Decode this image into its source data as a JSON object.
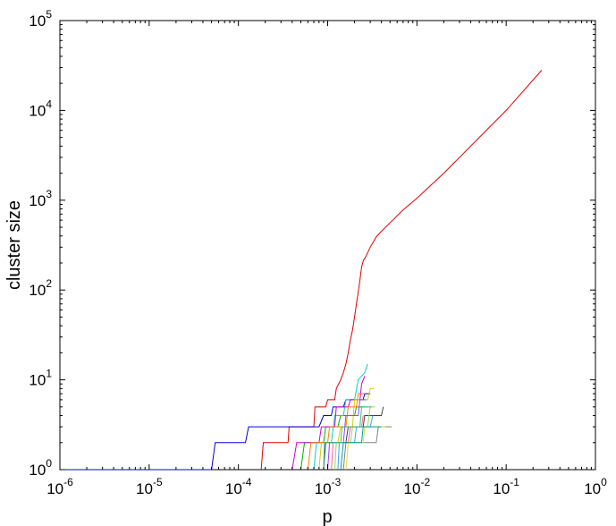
{
  "chart_data": {
    "type": "line",
    "title": "",
    "xlabel": "p",
    "ylabel": "cluster size",
    "xscale": "log",
    "yscale": "log",
    "xlim": [
      1e-06,
      1
    ],
    "ylim": [
      1,
      100000
    ],
    "grid": false,
    "legend": "none",
    "x_ticks": [
      {
        "base": "10",
        "exp": "-6",
        "value": 1e-06
      },
      {
        "base": "10",
        "exp": "-5",
        "value": 1e-05
      },
      {
        "base": "10",
        "exp": "-4",
        "value": 0.0001
      },
      {
        "base": "10",
        "exp": "-3",
        "value": 0.001
      },
      {
        "base": "10",
        "exp": "-2",
        "value": 0.01
      },
      {
        "base": "10",
        "exp": "-1",
        "value": 0.1
      },
      {
        "base": "10",
        "exp": "0",
        "value": 1
      }
    ],
    "y_ticks": [
      {
        "base": "10",
        "exp": "0",
        "value": 1
      },
      {
        "base": "10",
        "exp": "1",
        "value": 10
      },
      {
        "base": "10",
        "exp": "2",
        "value": 100
      },
      {
        "base": "10",
        "exp": "3",
        "value": 1000
      },
      {
        "base": "10",
        "exp": "4",
        "value": 10000
      },
      {
        "base": "10",
        "exp": "5",
        "value": 100000
      }
    ],
    "series": [
      {
        "color": "#e00000",
        "points": [
          [
            0.00018,
            1
          ],
          [
            0.00019,
            2
          ],
          [
            0.00036,
            2
          ],
          [
            0.00037,
            3
          ],
          [
            0.0007,
            3
          ],
          [
            0.00072,
            5
          ],
          [
            0.00095,
            5
          ],
          [
            0.001,
            6
          ],
          [
            0.0012,
            6
          ],
          [
            0.00125,
            8
          ],
          [
            0.0014,
            10
          ],
          [
            0.0015,
            12
          ],
          [
            0.0016,
            15
          ],
          [
            0.0017,
            20
          ],
          [
            0.0018,
            28
          ],
          [
            0.0019,
            36
          ],
          [
            0.002,
            50
          ],
          [
            0.0021,
            70
          ],
          [
            0.0022,
            95
          ],
          [
            0.0023,
            130
          ],
          [
            0.0024,
            180
          ],
          [
            0.0025,
            210
          ],
          [
            0.0027,
            240
          ],
          [
            0.003,
            300
          ],
          [
            0.0035,
            390
          ],
          [
            0.004,
            450
          ],
          [
            0.005,
            560
          ],
          [
            0.007,
            780
          ],
          [
            0.01,
            1050
          ],
          [
            0.02,
            2000
          ],
          [
            0.05,
            5000
          ],
          [
            0.1,
            10000
          ],
          [
            0.25,
            28000
          ]
        ]
      },
      {
        "color": "#0000e0",
        "points": [
          [
            1e-07,
            1
          ],
          [
            5e-05,
            1
          ],
          [
            5.5e-05,
            2
          ],
          [
            0.00012,
            2
          ],
          [
            0.00013,
            3
          ],
          [
            0.0005,
            3
          ],
          [
            0.0008,
            3
          ],
          [
            0.0009,
            4
          ],
          [
            0.0011,
            4
          ],
          [
            0.00115,
            5
          ],
          [
            0.0015,
            5
          ],
          [
            0.0016,
            6
          ],
          [
            0.0025,
            6
          ],
          [
            0.0026,
            7
          ],
          [
            0.003,
            7
          ]
        ]
      },
      {
        "color": "#00b000",
        "points": [
          [
            0.0005,
            1
          ],
          [
            0.00055,
            2
          ],
          [
            0.0009,
            2
          ],
          [
            0.00095,
            3
          ],
          [
            0.0013,
            3
          ],
          [
            0.0014,
            4
          ],
          [
            0.002,
            4
          ],
          [
            0.0021,
            5
          ],
          [
            0.0028,
            5
          ]
        ]
      },
      {
        "color": "#00d0d0",
        "points": [
          [
            0.0007,
            1
          ],
          [
            0.00075,
            2
          ],
          [
            0.0011,
            2
          ],
          [
            0.0012,
            4
          ],
          [
            0.0015,
            4
          ],
          [
            0.0016,
            6
          ],
          [
            0.002,
            6
          ],
          [
            0.0022,
            10
          ],
          [
            0.0026,
            12
          ],
          [
            0.0028,
            15
          ]
        ]
      },
      {
        "color": "#d000d0",
        "points": [
          [
            0.0004,
            1
          ],
          [
            0.00045,
            2
          ],
          [
            0.0008,
            2
          ],
          [
            0.00085,
            3
          ],
          [
            0.0012,
            3
          ],
          [
            0.00125,
            5
          ],
          [
            0.0017,
            5
          ],
          [
            0.0018,
            6
          ],
          [
            0.0023,
            6
          ],
          [
            0.0024,
            9
          ],
          [
            0.0026,
            11
          ]
        ]
      },
      {
        "color": "#d0d000",
        "points": [
          [
            0.0008,
            1
          ],
          [
            0.00085,
            2
          ],
          [
            0.0013,
            2
          ],
          [
            0.0014,
            3
          ],
          [
            0.0019,
            3
          ],
          [
            0.002,
            6
          ],
          [
            0.0028,
            6
          ],
          [
            0.003,
            8
          ],
          [
            0.0033,
            8
          ]
        ]
      },
      {
        "color": "#404040",
        "points": [
          [
            0.0009,
            1
          ],
          [
            0.00095,
            2
          ],
          [
            0.0016,
            2
          ],
          [
            0.0017,
            3
          ],
          [
            0.0025,
            3
          ],
          [
            0.0026,
            4
          ],
          [
            0.004,
            4
          ],
          [
            0.0042,
            5
          ]
        ]
      },
      {
        "color": "#ff8000",
        "points": [
          [
            0.0006,
            1
          ],
          [
            0.00065,
            2
          ],
          [
            0.001,
            2
          ],
          [
            0.00105,
            3
          ],
          [
            0.0016,
            3
          ],
          [
            0.0017,
            5
          ],
          [
            0.0021,
            5
          ],
          [
            0.0022,
            7
          ],
          [
            0.0026,
            7
          ]
        ]
      },
      {
        "color": "#90e050",
        "points": [
          [
            0.0012,
            1
          ],
          [
            0.00125,
            2
          ],
          [
            0.0018,
            2
          ],
          [
            0.0019,
            3
          ],
          [
            0.0028,
            3
          ],
          [
            0.003,
            5
          ],
          [
            0.0034,
            5
          ]
        ]
      },
      {
        "color": "#a040ff",
        "points": [
          [
            0.001,
            1
          ],
          [
            0.00105,
            2
          ],
          [
            0.0015,
            2
          ],
          [
            0.0016,
            4
          ],
          [
            0.0022,
            4
          ],
          [
            0.0023,
            6
          ],
          [
            0.0027,
            6
          ]
        ]
      },
      {
        "color": "#40a0ff",
        "points": [
          [
            0.0013,
            1
          ],
          [
            0.00135,
            2
          ],
          [
            0.002,
            2
          ],
          [
            0.0021,
            3
          ],
          [
            0.003,
            3
          ],
          [
            0.0032,
            4
          ]
        ]
      },
      {
        "color": "#ff60a0",
        "points": [
          [
            0.0011,
            1
          ],
          [
            0.00115,
            2
          ],
          [
            0.0017,
            2
          ],
          [
            0.0018,
            3
          ],
          [
            0.0024,
            3
          ],
          [
            0.0025,
            4
          ]
        ]
      },
      {
        "color": "#30c080",
        "points": [
          [
            0.0009,
            1
          ],
          [
            0.00092,
            2
          ],
          [
            0.0014,
            2
          ],
          [
            0.00145,
            3
          ],
          [
            0.0023,
            3
          ],
          [
            0.0024,
            5
          ],
          [
            0.0031,
            5
          ]
        ]
      },
      {
        "color": "#808080",
        "points": [
          [
            0.0015,
            1
          ],
          [
            0.0016,
            2
          ],
          [
            0.0035,
            2
          ],
          [
            0.0037,
            3
          ],
          [
            0.0052,
            3
          ]
        ]
      },
      {
        "color": "#e0e040",
        "points": [
          [
            0.0016,
            1
          ],
          [
            0.0017,
            2
          ],
          [
            0.0025,
            2
          ],
          [
            0.0026,
            3
          ],
          [
            0.0045,
            3
          ]
        ]
      },
      {
        "color": "#00a0a0",
        "points": [
          [
            0.0014,
            1
          ],
          [
            0.0015,
            2
          ],
          [
            0.0024,
            2
          ],
          [
            0.0025,
            3
          ],
          [
            0.004,
            3
          ]
        ]
      }
    ]
  }
}
